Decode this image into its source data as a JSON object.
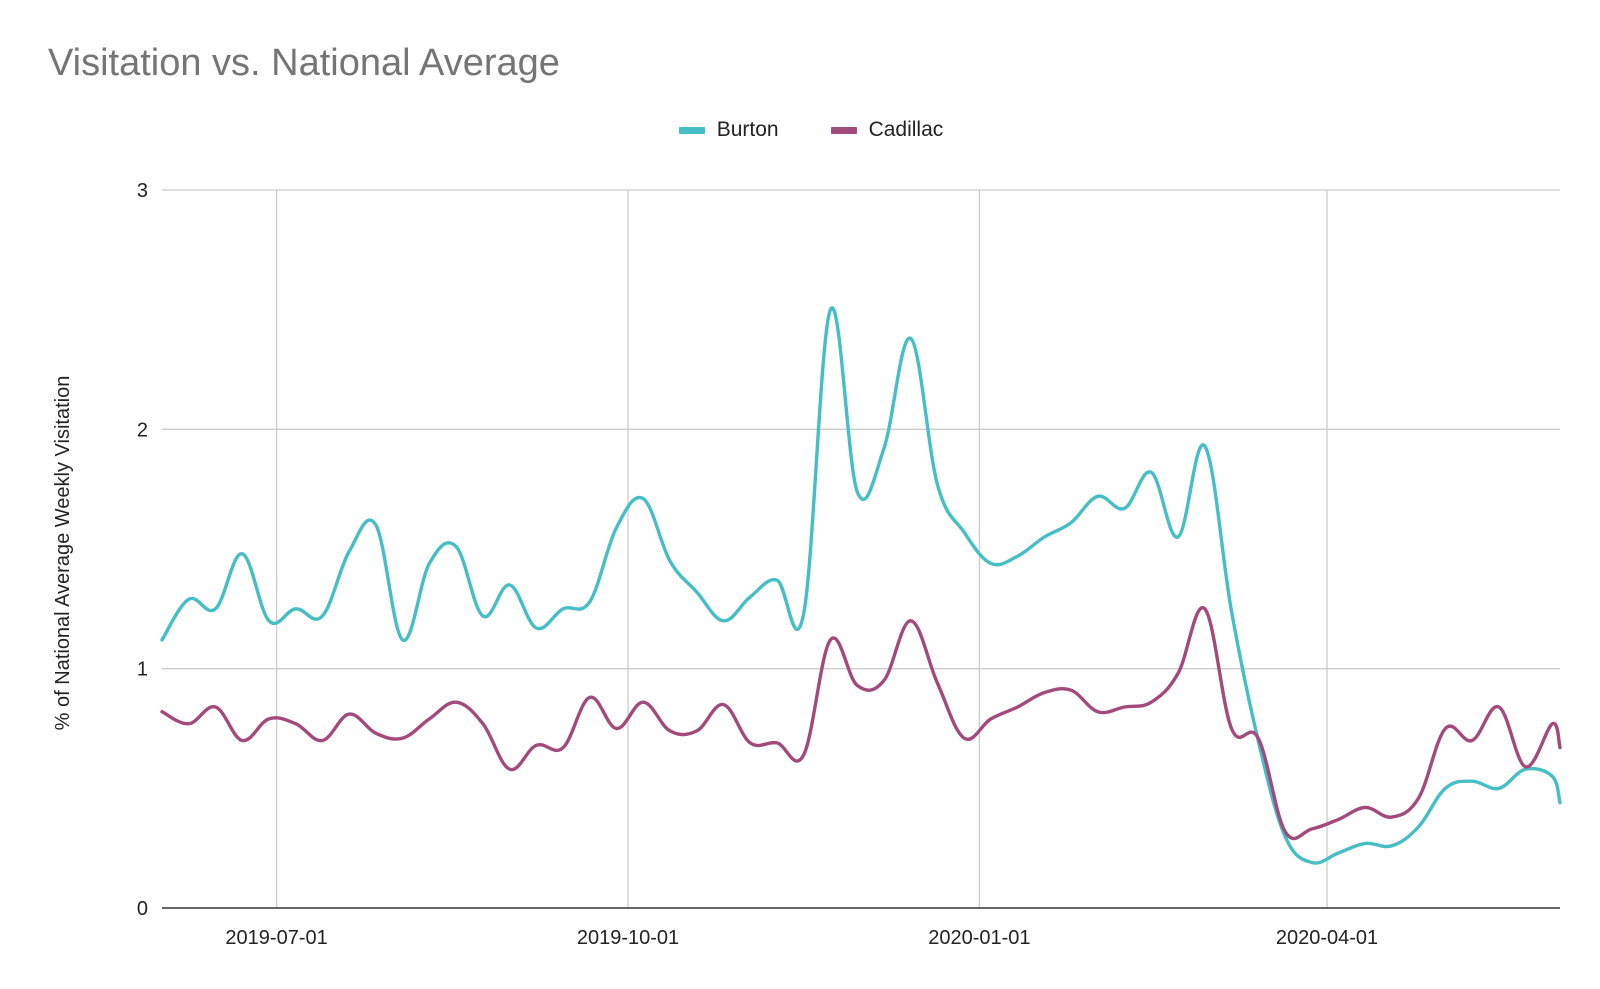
{
  "colors": {
    "burton": "#45bec6",
    "cadillac": "#a34a7c",
    "grid": "#cccccc",
    "axis": "#333333"
  },
  "chart_data": {
    "type": "line",
    "title": "Visitation vs. National Average",
    "ylabel": "% of National Average Weekly Visitation",
    "xlabel": "",
    "ylim": [
      0,
      3
    ],
    "yticks": [
      0,
      1,
      2,
      3
    ],
    "ytick_labels": [
      "0",
      "1",
      "2",
      "3"
    ],
    "xlim": [
      "2019-06-01",
      "2020-06-01"
    ],
    "xticks": [
      "2019-07-01",
      "2019-10-01",
      "2020-01-01",
      "2020-04-01"
    ],
    "xtick_labels": [
      "2019-07-01",
      "2019-10-01",
      "2020-01-01",
      "2020-04-01"
    ],
    "grid": true,
    "legend_position": "top-center",
    "x": [
      "2019-06-01",
      "2019-06-08",
      "2019-06-15",
      "2019-06-22",
      "2019-06-29",
      "2019-07-06",
      "2019-07-13",
      "2019-07-20",
      "2019-07-27",
      "2019-08-03",
      "2019-08-10",
      "2019-08-17",
      "2019-08-24",
      "2019-08-31",
      "2019-09-07",
      "2019-09-14",
      "2019-09-21",
      "2019-09-28",
      "2019-10-05",
      "2019-10-12",
      "2019-10-19",
      "2019-10-26",
      "2019-11-02",
      "2019-11-09",
      "2019-11-16",
      "2019-11-23",
      "2019-11-30",
      "2019-12-07",
      "2019-12-14",
      "2019-12-21",
      "2019-12-28",
      "2020-01-04",
      "2020-01-11",
      "2020-01-18",
      "2020-01-25",
      "2020-02-01",
      "2020-02-08",
      "2020-02-15",
      "2020-02-22",
      "2020-02-29",
      "2020-03-07",
      "2020-03-14",
      "2020-03-21",
      "2020-03-28",
      "2020-04-04",
      "2020-04-11",
      "2020-04-18",
      "2020-04-25",
      "2020-05-02",
      "2020-05-09",
      "2020-05-16",
      "2020-05-23",
      "2020-05-30",
      "2020-06-01"
    ],
    "series": [
      {
        "name": "Burton",
        "values": [
          1.12,
          1.29,
          1.25,
          1.48,
          1.2,
          1.25,
          1.22,
          1.49,
          1.6,
          1.12,
          1.44,
          1.51,
          1.22,
          1.35,
          1.17,
          1.25,
          1.28,
          1.59,
          1.71,
          1.45,
          1.32,
          1.2,
          1.3,
          1.37,
          1.23,
          2.5,
          1.74,
          1.92,
          2.38,
          1.77,
          1.57,
          1.44,
          1.47,
          1.55,
          1.61,
          1.72,
          1.67,
          1.82,
          1.55,
          1.93,
          1.24,
          0.7,
          0.3,
          0.19,
          0.23,
          0.27,
          0.26,
          0.34,
          0.5,
          0.53,
          0.5,
          0.58,
          0.55,
          0.44
        ]
      },
      {
        "name": "Cadillac",
        "values": [
          0.82,
          0.77,
          0.84,
          0.7,
          0.79,
          0.77,
          0.7,
          0.81,
          0.73,
          0.71,
          0.79,
          0.86,
          0.77,
          0.58,
          0.68,
          0.67,
          0.88,
          0.75,
          0.86,
          0.74,
          0.74,
          0.85,
          0.69,
          0.69,
          0.64,
          1.12,
          0.93,
          0.95,
          1.2,
          0.94,
          0.71,
          0.79,
          0.84,
          0.9,
          0.91,
          0.82,
          0.84,
          0.86,
          0.98,
          1.25,
          0.75,
          0.71,
          0.32,
          0.33,
          0.37,
          0.42,
          0.38,
          0.46,
          0.75,
          0.7,
          0.84,
          0.59,
          0.77,
          0.67
        ]
      }
    ]
  }
}
